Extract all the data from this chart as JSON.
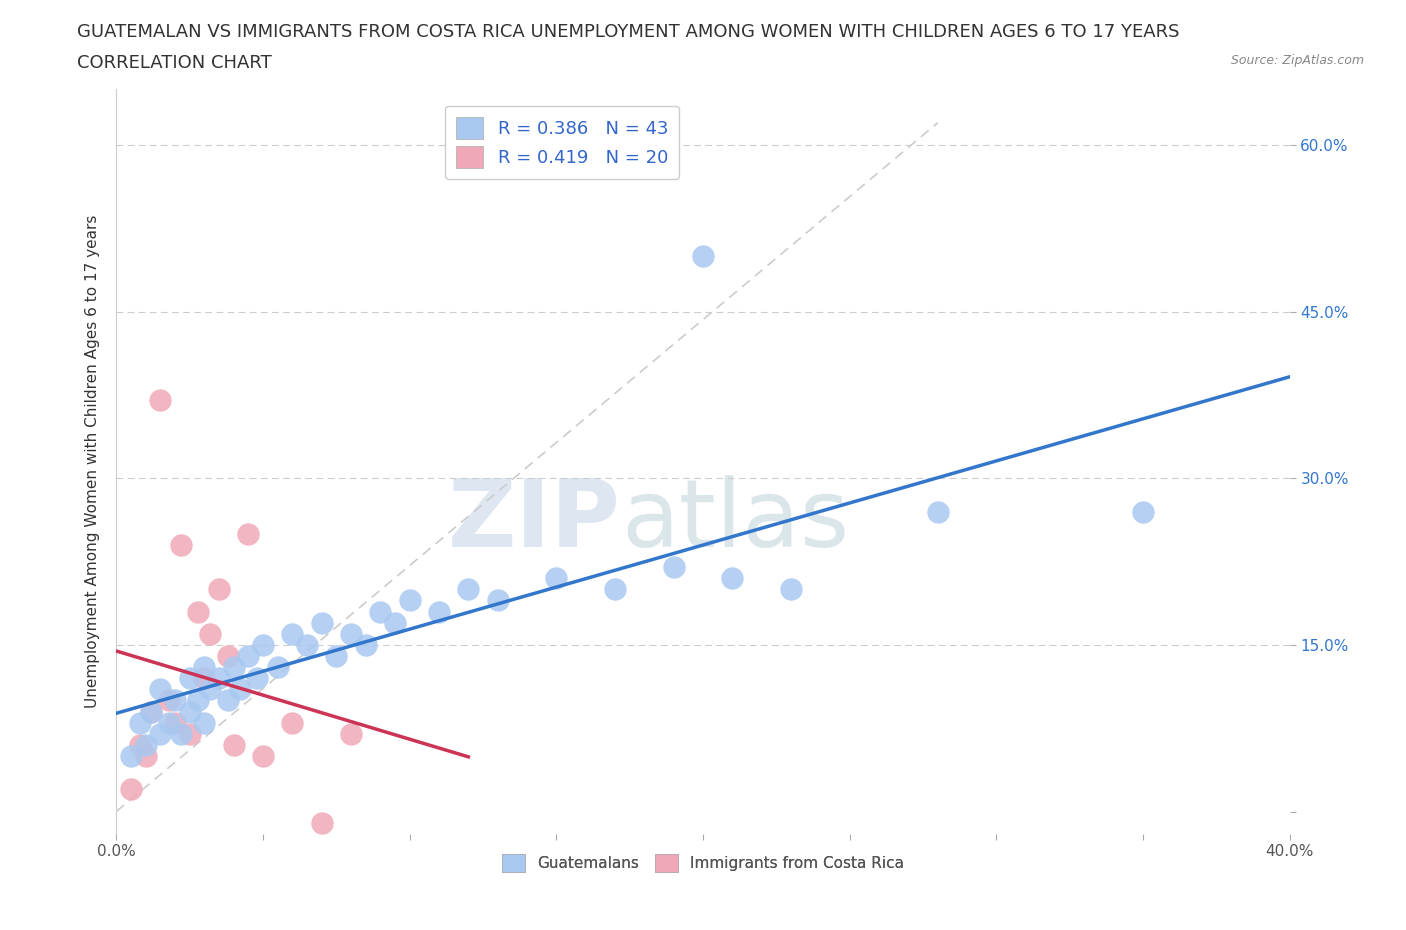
{
  "title_line1": "GUATEMALAN VS IMMIGRANTS FROM COSTA RICA UNEMPLOYMENT AMONG WOMEN WITH CHILDREN AGES 6 TO 17 YEARS",
  "title_line2": "CORRELATION CHART",
  "source": "Source: ZipAtlas.com",
  "ylabel": "Unemployment Among Women with Children Ages 6 to 17 years",
  "xlim": [
    0.0,
    0.4
  ],
  "ylim": [
    -0.02,
    0.65
  ],
  "xticks": [
    0.0,
    0.05,
    0.1,
    0.15,
    0.2,
    0.25,
    0.3,
    0.35,
    0.4
  ],
  "xticklabels_ends": [
    "0.0%",
    "40.0%"
  ],
  "yticks": [
    0.0,
    0.15,
    0.3,
    0.45,
    0.6
  ],
  "yticklabels": [
    "",
    "15.0%",
    "30.0%",
    "45.0%",
    "60.0%"
  ],
  "blue_R": 0.386,
  "blue_N": 43,
  "pink_R": 0.419,
  "pink_N": 20,
  "blue_color": "#a8c8f0",
  "pink_color": "#f0a8b8",
  "blue_line_color": "#3377cc",
  "pink_line_color": "#cc3355",
  "blue_scatter_x": [
    0.005,
    0.008,
    0.01,
    0.012,
    0.015,
    0.015,
    0.018,
    0.02,
    0.022,
    0.025,
    0.025,
    0.028,
    0.03,
    0.03,
    0.032,
    0.035,
    0.038,
    0.04,
    0.042,
    0.045,
    0.048,
    0.05,
    0.055,
    0.06,
    0.065,
    0.07,
    0.075,
    0.08,
    0.085,
    0.09,
    0.095,
    0.1,
    0.11,
    0.12,
    0.13,
    0.15,
    0.17,
    0.19,
    0.21,
    0.23,
    0.28,
    0.35,
    0.2
  ],
  "blue_scatter_y": [
    0.05,
    0.08,
    0.06,
    0.09,
    0.07,
    0.11,
    0.08,
    0.1,
    0.07,
    0.09,
    0.12,
    0.1,
    0.08,
    0.13,
    0.11,
    0.12,
    0.1,
    0.13,
    0.11,
    0.14,
    0.12,
    0.15,
    0.13,
    0.16,
    0.15,
    0.17,
    0.14,
    0.16,
    0.15,
    0.18,
    0.17,
    0.19,
    0.18,
    0.2,
    0.19,
    0.21,
    0.2,
    0.22,
    0.21,
    0.2,
    0.27,
    0.27,
    0.5
  ],
  "pink_scatter_x": [
    0.005,
    0.008,
    0.01,
    0.012,
    0.015,
    0.018,
    0.02,
    0.022,
    0.025,
    0.028,
    0.03,
    0.032,
    0.035,
    0.038,
    0.04,
    0.045,
    0.05,
    0.06,
    0.07,
    0.08
  ],
  "pink_scatter_y": [
    0.02,
    0.06,
    0.05,
    0.09,
    0.37,
    0.1,
    0.08,
    0.24,
    0.07,
    0.18,
    0.12,
    0.16,
    0.2,
    0.14,
    0.06,
    0.25,
    0.05,
    0.08,
    -0.01,
    0.07
  ],
  "diag_color": "#cccccc",
  "watermark_zip": "ZIP",
  "watermark_atlas": "atlas",
  "background_color": "#ffffff",
  "grid_color": "#cccccc",
  "title_fontsize": 13,
  "label_fontsize": 11,
  "tick_fontsize": 11
}
